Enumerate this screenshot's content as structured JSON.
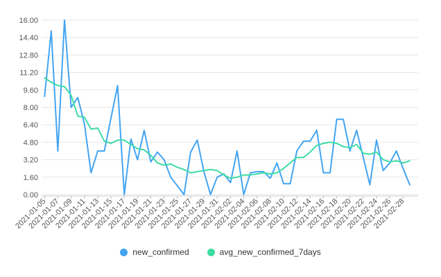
{
  "chart_data": {
    "type": "line",
    "x": [
      "2021-01-05",
      "2021-01-06",
      "2021-01-07",
      "2021-01-08",
      "2021-01-09",
      "2021-01-10",
      "2021-01-11",
      "2021-01-12",
      "2021-01-13",
      "2021-01-14",
      "2021-01-15",
      "2021-01-16",
      "2021-01-17",
      "2021-01-18",
      "2021-01-19",
      "2021-01-20",
      "2021-01-21",
      "2021-01-22",
      "2021-01-23",
      "2021-01-24",
      "2021-01-25",
      "2021-01-26",
      "2021-01-27",
      "2021-01-28",
      "2021-01-29",
      "2021-01-30",
      "2021-01-31",
      "2021-02-01",
      "2021-02-02",
      "2021-02-03",
      "2021-02-04",
      "2021-02-05",
      "2021-02-06",
      "2021-02-07",
      "2021-02-08",
      "2021-02-09",
      "2021-02-10",
      "2021-02-11",
      "2021-02-12",
      "2021-02-13",
      "2021-02-14",
      "2021-02-15",
      "2021-02-16",
      "2021-02-17",
      "2021-02-18",
      "2021-02-19",
      "2021-02-20",
      "2021-02-21",
      "2021-02-22",
      "2021-02-23",
      "2021-02-24",
      "2021-02-25",
      "2021-02-26",
      "2021-02-27",
      "2021-02-28",
      "2021-03-01"
    ],
    "x_tick_step": 2,
    "series": [
      {
        "name": "new_confirmed",
        "color": "#42a4f2",
        "values": [
          9.0,
          15.0,
          4.0,
          16.0,
          8.0,
          8.9,
          6.5,
          2.0,
          4.0,
          4.0,
          7.0,
          10.0,
          0.0,
          5.1,
          3.2,
          5.9,
          3.0,
          3.9,
          3.2,
          1.6,
          0.8,
          0.0,
          3.9,
          5.0,
          2.1,
          0.0,
          1.6,
          1.9,
          1.1,
          4.0,
          0.0,
          2.0,
          2.1,
          2.1,
          1.5,
          2.9,
          1.0,
          1.0,
          4.0,
          4.9,
          4.9,
          5.9,
          2.0,
          2.0,
          6.9,
          6.9,
          4.0,
          5.9,
          3.4,
          0.9,
          5.0,
          2.2,
          2.9,
          4.0,
          2.4,
          0.9
        ]
      },
      {
        "name": "avg_new_confirmed_7days",
        "color": "#3cdca3",
        "values": [
          10.7,
          10.3,
          10.0,
          9.9,
          9.1,
          7.2,
          7.1,
          6.0,
          6.1,
          4.9,
          4.7,
          5.0,
          5.0,
          4.6,
          4.2,
          4.1,
          3.6,
          2.9,
          2.7,
          2.8,
          2.5,
          2.3,
          2.0,
          2.1,
          2.2,
          2.3,
          2.2,
          1.8,
          1.5,
          1.6,
          1.8,
          1.8,
          1.9,
          2.0,
          1.9,
          2.0,
          2.4,
          2.9,
          3.4,
          3.4,
          3.9,
          4.5,
          4.7,
          4.8,
          4.7,
          4.4,
          4.3,
          4.6,
          3.8,
          3.7,
          3.9,
          3.2,
          3.0,
          3.1,
          2.9,
          3.1
        ]
      }
    ],
    "title": "",
    "xlabel": "",
    "ylabel": "",
    "ylim": [
      0,
      16
    ],
    "y_ticks": [
      "0.00",
      "1.60",
      "3.20",
      "4.80",
      "6.40",
      "8.00",
      "9.60",
      "11.20",
      "12.80",
      "14.40",
      "16.00"
    ],
    "grid": "horizontal",
    "legend_position": "bottom"
  },
  "legend": {
    "items": [
      {
        "label": "new_confirmed",
        "color": "#42a4f2"
      },
      {
        "label": "avg_new_confirmed_7days",
        "color": "#3cdca3"
      }
    ]
  },
  "style_colors": {
    "grid_line": "#e6e6e6",
    "axis_line": "#cccccc",
    "tick_mark": "#bbbbbb",
    "axis_label": "#555555"
  }
}
